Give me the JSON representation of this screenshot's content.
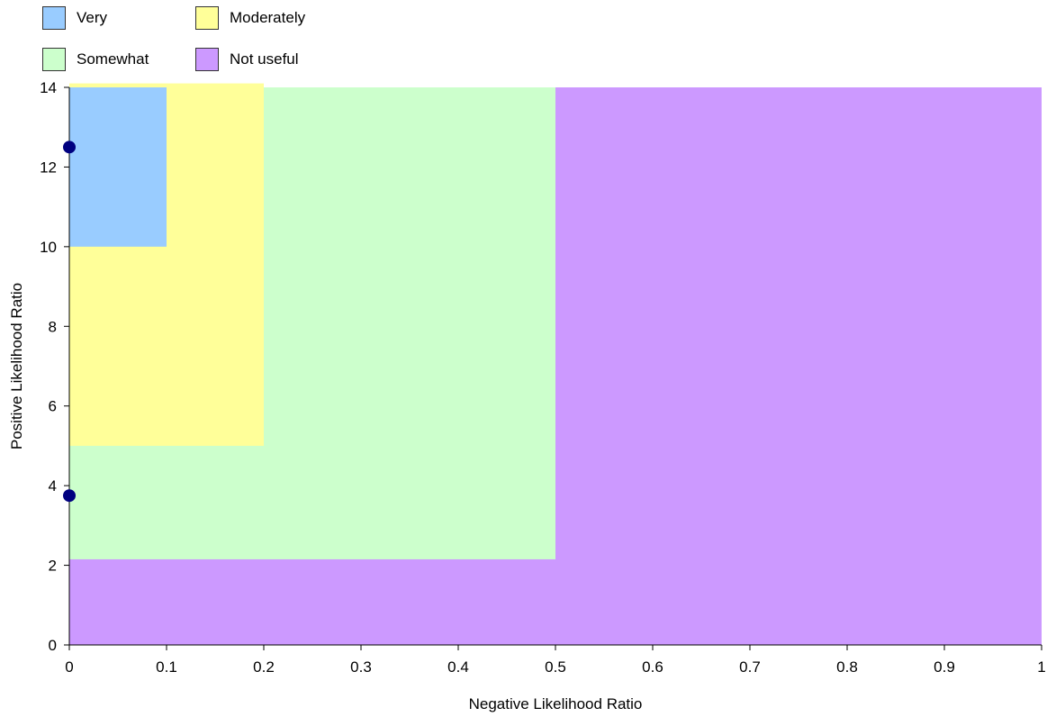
{
  "chart_data": {
    "type": "area",
    "xlabel": "Negative Likelihood Ratio",
    "ylabel": "Positive Likelihood Ratio",
    "xlim": [
      0,
      1
    ],
    "ylim": [
      0,
      14
    ],
    "x_ticks": [
      "0",
      "0.1",
      "0.2",
      "0.3",
      "0.4",
      "0.5",
      "0.6",
      "0.7",
      "0.8",
      "0.9",
      "1"
    ],
    "y_ticks": [
      "0",
      "2",
      "4",
      "6",
      "8",
      "10",
      "12",
      "14"
    ],
    "legend_position": "top-left",
    "regions": [
      {
        "name": "Not useful",
        "color": "#cc99ff",
        "x": [
          0,
          1
        ],
        "y": [
          0,
          14
        ]
      },
      {
        "name": "Somewhat",
        "color": "#ccffcc",
        "x": [
          0,
          0.5
        ],
        "y": [
          2.15,
          14
        ]
      },
      {
        "name": "Moderately",
        "color": "#ffff99",
        "x": [
          0,
          0.2
        ],
        "y": [
          5,
          14.1
        ]
      },
      {
        "name": "Very",
        "color": "#99ccff",
        "x": [
          0,
          0.1
        ],
        "y": [
          10,
          14
        ]
      }
    ],
    "legend": [
      {
        "label": "Very",
        "color": "#99ccff"
      },
      {
        "label": "Moderately",
        "color": "#ffff99"
      },
      {
        "label": "Somewhat",
        "color": "#ccffcc"
      },
      {
        "label": "Not useful",
        "color": "#cc99ff"
      }
    ],
    "points": [
      {
        "x": 0,
        "y": 12.5
      },
      {
        "x": 0,
        "y": 3.75
      }
    ],
    "point_color": "#000080"
  }
}
